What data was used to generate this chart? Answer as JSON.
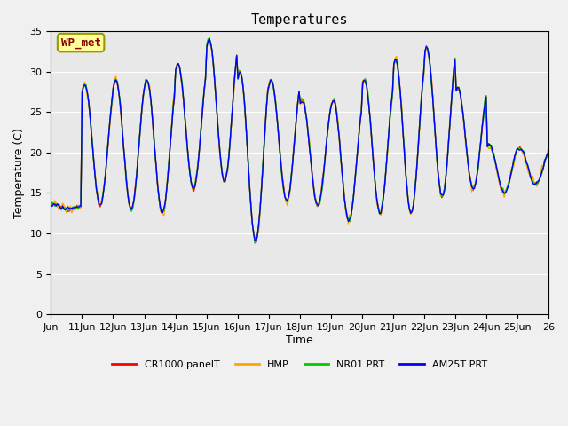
{
  "title": "Temperatures",
  "xlabel": "Time",
  "ylabel": "Temperature (C)",
  "ylim": [
    0,
    35
  ],
  "yticks": [
    0,
    5,
    10,
    15,
    20,
    25,
    30,
    35
  ],
  "background_color": "#f0f0f0",
  "plot_bg_color": "#e8e8e8",
  "series": [
    "CR1000 panelT",
    "HMP",
    "NR01 PRT",
    "AM25T PRT"
  ],
  "colors": [
    "#ff0000",
    "#ffa500",
    "#00cc00",
    "#0000ff"
  ],
  "annotation_text": "WP_met",
  "annotation_bg": "#ffff99",
  "annotation_border": "#999900",
  "x_start_day": 10,
  "x_end_day": 26,
  "xtick_days": [
    10,
    11,
    12,
    13,
    14,
    15,
    16,
    17,
    18,
    19,
    20,
    21,
    22,
    23,
    24,
    25,
    26
  ],
  "xtick_labels": [
    "Jun",
    "11Jun",
    "12Jun",
    "13Jun",
    "14Jun",
    "15Jun",
    "16Jun",
    "17Jun",
    "18Jun",
    "19Jun",
    "20Jun",
    "21Jun",
    "22Jun",
    "23Jun",
    "24Jun",
    "25Jun",
    "26"
  ]
}
